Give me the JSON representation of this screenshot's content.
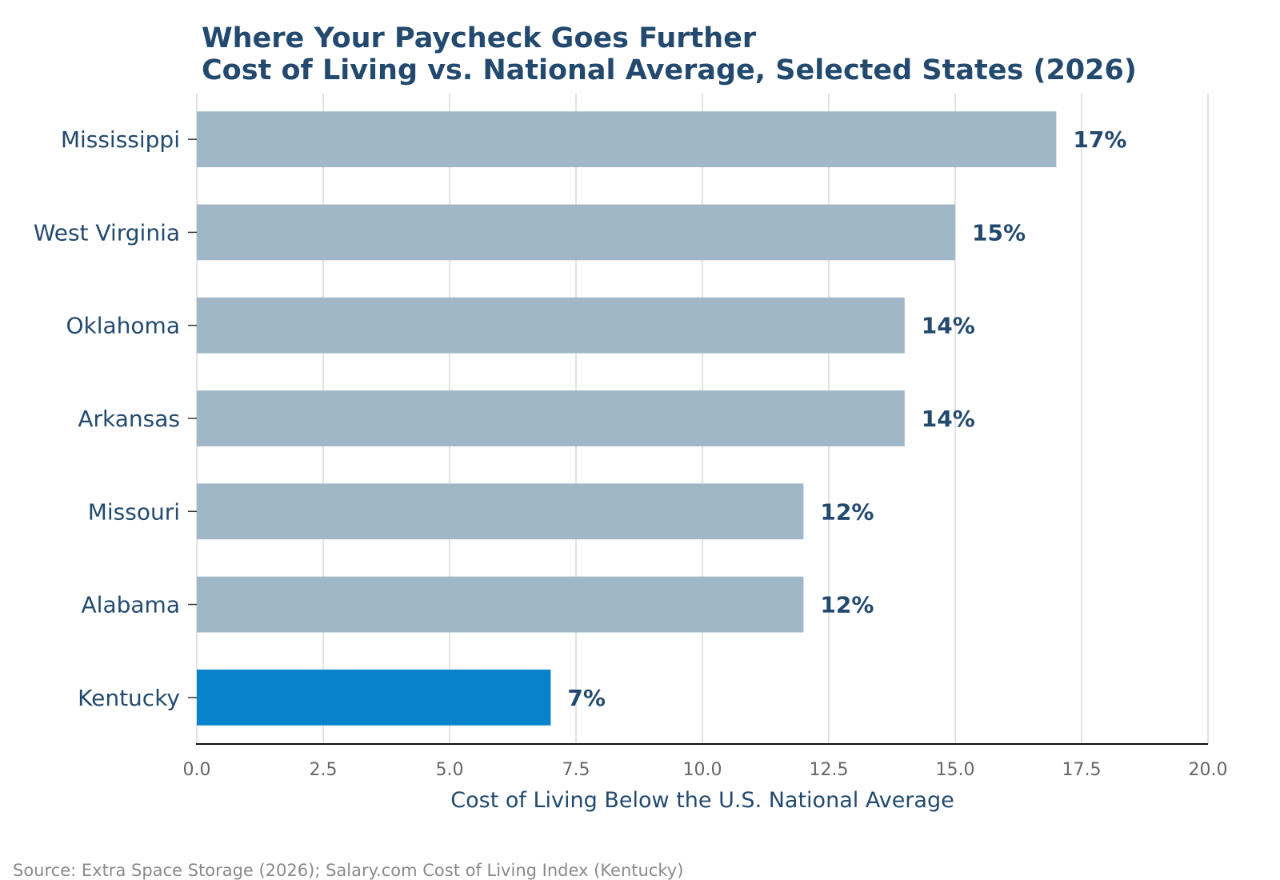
{
  "chart_data": {
    "type": "bar",
    "orientation": "horizontal",
    "title": "Where Your Paycheck Goes Further",
    "subtitle": "Cost of Living vs. National Average, Selected States (2026)",
    "xlabel": "Cost of Living Below the U.S. National Average",
    "ylabel": "",
    "categories": [
      "Mississippi",
      "West Virginia",
      "Oklahoma",
      "Arkansas",
      "Missouri",
      "Alabama",
      "Kentucky"
    ],
    "values": [
      17,
      15,
      14,
      14,
      12,
      12,
      7
    ],
    "data_labels": [
      "17%",
      "15%",
      "14%",
      "14%",
      "12%",
      "12%",
      "7%"
    ],
    "highlight": "Kentucky",
    "xlim": [
      0,
      20
    ],
    "xticks": [
      0.0,
      2.5,
      5.0,
      7.5,
      10.0,
      12.5,
      15.0,
      17.5,
      20.0
    ],
    "xtick_labels": [
      "0.0",
      "2.5",
      "5.0",
      "7.5",
      "10.0",
      "12.5",
      "15.0",
      "17.5",
      "20.0"
    ],
    "grid": "vertical",
    "colors": {
      "bar": "#a0b7c7",
      "highlight_bar": "#0782cb",
      "text": "#234a6e",
      "tick_text": "#666666",
      "grid": "#e3e3e3"
    },
    "source": "Source: Extra Space Storage (2026); Salary.com Cost of Living Index (Kentucky)"
  }
}
